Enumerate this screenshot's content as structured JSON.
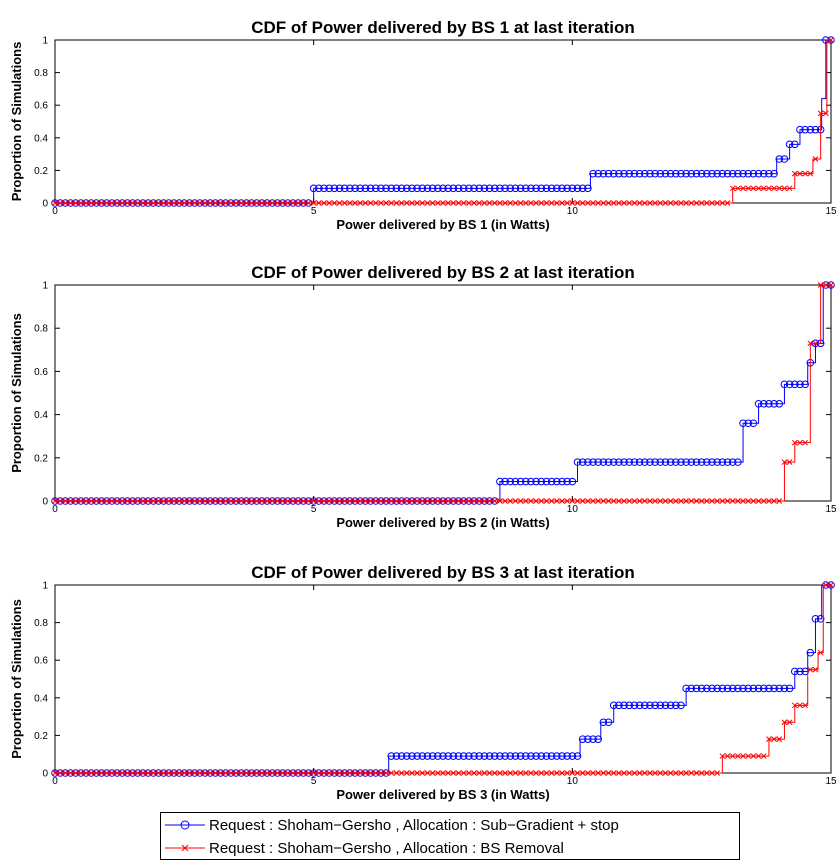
{
  "colors": {
    "series1": "#0000ff",
    "series2": "#ff0000",
    "axes": "#000000"
  },
  "legend": {
    "placement": "bottom-center",
    "entries": [
      "Request : Shoham−Gersho , Allocation : Sub−Gradient + stop",
      "Request : Shoham−Gersho , Allocation : BS Removal"
    ]
  },
  "chart_data": [
    {
      "type": "line",
      "title": "CDF of Power delivered by BS 1 at last iteration",
      "xlabel": "Power delivered by BS 1 (in Watts)",
      "ylabel": "Proportion of Simulations",
      "xlim": [
        0,
        15
      ],
      "ylim": [
        0,
        1
      ],
      "xticks": [
        0,
        5,
        10,
        15
      ],
      "yticks": [
        0,
        0.2,
        0.4,
        0.6,
        0.8,
        1
      ],
      "ytick_labels": [
        "0",
        "0.2",
        "0.4",
        "0.6",
        "0.8",
        "1"
      ],
      "grid": false,
      "series": [
        {
          "name": "Request : Shoham−Gersho , Allocation : Sub−Gradient + stop",
          "marker": "o",
          "steps": [
            [
              0,
              0
            ],
            [
              5.0,
              0.09
            ],
            [
              10.35,
              0.18
            ],
            [
              13.95,
              0.27
            ],
            [
              14.2,
              0.36
            ],
            [
              14.4,
              0.45
            ],
            [
              14.82,
              0.64
            ],
            [
              14.9,
              1.0
            ],
            [
              15.0,
              1.0
            ]
          ]
        },
        {
          "name": "Request : Shoham−Gersho , Allocation : BS Removal",
          "marker": "x",
          "steps": [
            [
              0,
              0
            ],
            [
              13.1,
              0.09
            ],
            [
              14.3,
              0.18
            ],
            [
              14.65,
              0.27
            ],
            [
              14.8,
              0.55
            ],
            [
              14.92,
              1.0
            ],
            [
              15.0,
              1.0
            ]
          ]
        }
      ]
    },
    {
      "type": "line",
      "title": "CDF of Power delivered by BS 2 at last iteration",
      "xlabel": "Power delivered by BS 2 (in Watts)",
      "ylabel": "Proportion of Simulations",
      "xlim": [
        0,
        15
      ],
      "ylim": [
        0,
        1
      ],
      "xticks": [
        0,
        5,
        10,
        15
      ],
      "yticks": [
        0,
        0.2,
        0.4,
        0.6,
        0.8,
        1
      ],
      "ytick_labels": [
        "0",
        "0.2",
        "0.4",
        "0.6",
        "0.8",
        "1"
      ],
      "grid": false,
      "series": [
        {
          "name": "Request : Shoham−Gersho , Allocation : Sub−Gradient + stop",
          "marker": "o",
          "steps": [
            [
              0,
              0
            ],
            [
              8.6,
              0.09
            ],
            [
              10.1,
              0.18
            ],
            [
              13.3,
              0.36
            ],
            [
              13.6,
              0.45
            ],
            [
              14.1,
              0.54
            ],
            [
              14.55,
              0.64
            ],
            [
              14.7,
              0.73
            ],
            [
              14.85,
              1.0
            ],
            [
              15.0,
              1.0
            ]
          ]
        },
        {
          "name": "Request : Shoham−Gersho , Allocation : BS Removal",
          "marker": "x",
          "steps": [
            [
              0,
              0
            ],
            [
              14.1,
              0.18
            ],
            [
              14.3,
              0.27
            ],
            [
              14.6,
              0.73
            ],
            [
              14.8,
              1.0
            ],
            [
              15.0,
              1.0
            ]
          ]
        }
      ]
    },
    {
      "type": "line",
      "title": "CDF of Power delivered by BS 3 at last iteration",
      "xlabel": "Power delivered by BS 3 (in Watts)",
      "ylabel": "Proportion of Simulations",
      "xlim": [
        0,
        15
      ],
      "ylim": [
        0,
        1
      ],
      "xticks": [
        0,
        5,
        10,
        15
      ],
      "yticks": [
        0,
        0.2,
        0.4,
        0.6,
        0.8,
        1
      ],
      "ytick_labels": [
        "0",
        "0.2",
        "0.4",
        "0.6",
        "0.8",
        "1"
      ],
      "grid": false,
      "series": [
        {
          "name": "Request : Shoham−Gersho , Allocation : Sub−Gradient + stop",
          "marker": "o",
          "steps": [
            [
              0,
              0
            ],
            [
              6.45,
              0.09
            ],
            [
              10.15,
              0.18
            ],
            [
              10.55,
              0.27
            ],
            [
              10.8,
              0.36
            ],
            [
              12.2,
              0.45
            ],
            [
              14.3,
              0.54
            ],
            [
              14.55,
              0.64
            ],
            [
              14.7,
              0.82
            ],
            [
              14.82,
              1.0
            ],
            [
              15.0,
              1.0
            ]
          ]
        },
        {
          "name": "Request : Shoham−Gersho , Allocation : BS Removal",
          "marker": "x",
          "steps": [
            [
              0,
              0
            ],
            [
              12.9,
              0.09
            ],
            [
              13.8,
              0.18
            ],
            [
              14.1,
              0.27
            ],
            [
              14.3,
              0.36
            ],
            [
              14.55,
              0.55
            ],
            [
              14.75,
              0.64
            ],
            [
              14.85,
              1.0
            ],
            [
              15.0,
              1.0
            ]
          ]
        }
      ]
    }
  ]
}
